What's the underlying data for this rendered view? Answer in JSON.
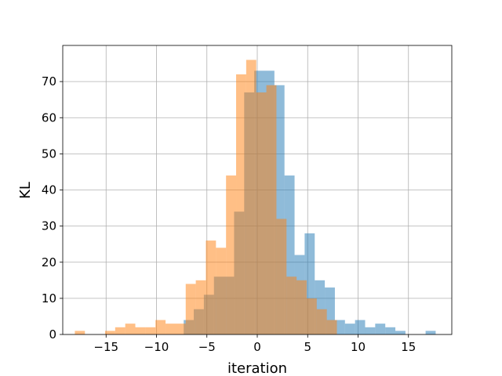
{
  "chart_data": {
    "type": "bar",
    "xlabel": "iteration",
    "ylabel": "KL",
    "xlim": [
      -19.3,
      19.3
    ],
    "ylim": [
      0,
      80
    ],
    "grid": true,
    "x_ticks": [
      -15,
      -10,
      -5,
      0,
      5,
      10,
      15
    ],
    "x_tick_labels": [
      "−15",
      "−10",
      "−5",
      "0",
      "5",
      "10",
      "15"
    ],
    "y_ticks": [
      0,
      10,
      20,
      30,
      40,
      50,
      60,
      70
    ],
    "y_tick_labels": [
      "0",
      "10",
      "20",
      "30",
      "40",
      "50",
      "60",
      "70"
    ],
    "series": [
      {
        "color": "#1f77b4",
        "opacity": 0.5,
        "bins": [
          [
            -7.3,
            -6.3,
            4
          ],
          [
            -6.3,
            -5.3,
            7
          ],
          [
            -5.3,
            -4.3,
            11
          ],
          [
            -4.3,
            -2.3,
            16
          ],
          [
            -2.3,
            -1.3,
            34
          ],
          [
            -1.3,
            -0.3,
            67
          ],
          [
            -0.3,
            1.7,
            73
          ],
          [
            1.7,
            2.7,
            69
          ],
          [
            2.7,
            3.7,
            44
          ],
          [
            3.7,
            4.7,
            22
          ],
          [
            4.7,
            5.7,
            28
          ],
          [
            5.7,
            6.7,
            15
          ],
          [
            6.7,
            7.7,
            13
          ],
          [
            7.7,
            8.7,
            4
          ],
          [
            8.7,
            9.7,
            3
          ],
          [
            9.7,
            10.7,
            4
          ],
          [
            10.7,
            11.7,
            2
          ],
          [
            11.7,
            12.7,
            3
          ],
          [
            12.7,
            13.7,
            2
          ],
          [
            13.7,
            14.7,
            1
          ],
          [
            16.7,
            17.7,
            1
          ]
        ]
      },
      {
        "color": "#ff7f0e",
        "opacity": 0.5,
        "bins": [
          [
            -18.1,
            -17.1,
            1
          ],
          [
            -15.1,
            -14.1,
            1
          ],
          [
            -14.1,
            -13.1,
            2
          ],
          [
            -13.1,
            -12.1,
            3
          ],
          [
            -12.1,
            -11.1,
            2
          ],
          [
            -11.1,
            -10.1,
            2
          ],
          [
            -10.1,
            -9.1,
            4
          ],
          [
            -9.1,
            -7.1,
            3
          ],
          [
            -7.1,
            -6.1,
            14
          ],
          [
            -6.1,
            -5.1,
            15
          ],
          [
            -5.1,
            -4.1,
            26
          ],
          [
            -4.1,
            -3.1,
            24
          ],
          [
            -3.1,
            -2.1,
            44
          ],
          [
            -2.1,
            -1.1,
            72
          ],
          [
            -1.1,
            -0.1,
            76
          ],
          [
            -0.1,
            0.9,
            67
          ],
          [
            0.9,
            1.9,
            69
          ],
          [
            1.9,
            2.9,
            32
          ],
          [
            2.9,
            3.9,
            16
          ],
          [
            3.9,
            4.9,
            15
          ],
          [
            4.9,
            5.9,
            10
          ],
          [
            5.9,
            6.9,
            7
          ],
          [
            6.9,
            7.9,
            4
          ]
        ]
      }
    ]
  }
}
